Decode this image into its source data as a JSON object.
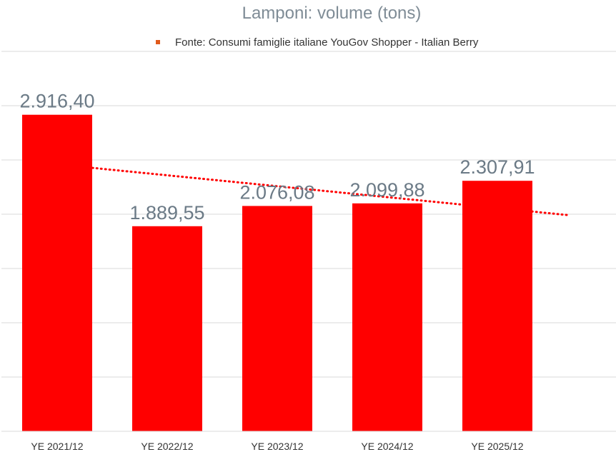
{
  "chart_data": {
    "type": "bar",
    "title": "Lamponi: volume (tons)",
    "legend": {
      "position": "top",
      "entries": [
        {
          "label": "Fonte: Consumi famiglie italiane YouGov Shopper - Italian Berry",
          "color": "#e05a1b"
        }
      ]
    },
    "categories": [
      "YE 2021/12",
      "YE 2022/12",
      "YE 2023/12",
      "YE 2024/12",
      "YE 2025/12"
    ],
    "values": [
      2916.4,
      1889.55,
      2076.08,
      2099.88,
      2307.91
    ],
    "value_labels": [
      "2.916,40",
      "1.889,55",
      "2.076,08",
      "2.099,88",
      "2.307,91"
    ],
    "bar_color": "#ff0000",
    "trendline": {
      "type": "linear",
      "style": "dotted",
      "color": "#ff0000"
    },
    "ylim": [
      0,
      3500
    ],
    "grid": true,
    "xlabel": "",
    "ylabel": ""
  }
}
